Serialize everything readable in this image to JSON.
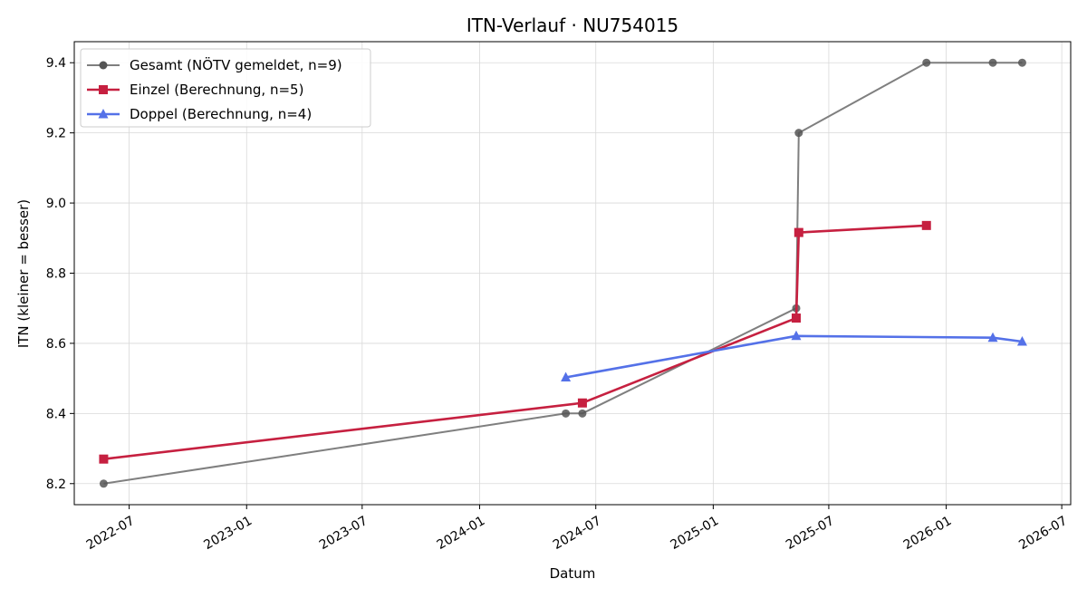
{
  "chart_data": {
    "type": "line",
    "title": "ITN-Verlauf · NU754015",
    "xlabel": "Datum",
    "ylabel": "ITN  (kleiner = besser)",
    "xlim": [
      "2022-04-06",
      "2026-07-15"
    ],
    "ylim": [
      8.14,
      9.46
    ],
    "x_ticks": [
      "2022-07-01",
      "2023-01-01",
      "2023-07-01",
      "2024-01-01",
      "2024-07-01",
      "2025-01-01",
      "2025-07-01",
      "2026-01-01",
      "2026-07-01"
    ],
    "x_tick_labels": [
      "2022-07",
      "2023-01",
      "2023-07",
      "2024-01",
      "2024-07",
      "2025-01",
      "2025-07",
      "2026-01",
      "2026-07"
    ],
    "y_ticks": [
      8.2,
      8.4,
      8.6,
      8.8,
      9.0,
      9.2,
      9.4
    ],
    "y_tick_labels": [
      "8.2",
      "8.4",
      "8.6",
      "8.8",
      "9.0",
      "9.2",
      "9.4"
    ],
    "grid": true,
    "legend_position": "top-left",
    "series": [
      {
        "name": "Gesamt (NÖTV gemeldet, n=9)",
        "color": "#7f7f7f",
        "marker": "circle",
        "x": [
          "2022-05-22",
          "2024-05-15",
          "2024-06-10",
          "2025-05-11",
          "2025-05-15",
          "2025-12-01",
          "2026-03-15",
          "2026-04-30"
        ],
        "y": [
          8.2,
          8.4,
          8.4,
          8.7,
          9.2,
          9.4,
          9.4,
          9.4
        ]
      },
      {
        "name": "Einzel (Berechnung, n=5)",
        "color": "#c62040",
        "marker": "square",
        "x": [
          "2022-05-22",
          "2024-06-10",
          "2025-05-11",
          "2025-05-15",
          "2025-12-01"
        ],
        "y": [
          8.27,
          8.43,
          8.672,
          8.916,
          8.936
        ]
      },
      {
        "name": "Doppel (Berechnung, n=4)",
        "color": "#5471e8",
        "marker": "triangle",
        "x": [
          "2024-05-15",
          "2025-05-11",
          "2026-03-15",
          "2026-04-30"
        ],
        "y": [
          8.503,
          8.621,
          8.616,
          8.605
        ]
      }
    ]
  }
}
